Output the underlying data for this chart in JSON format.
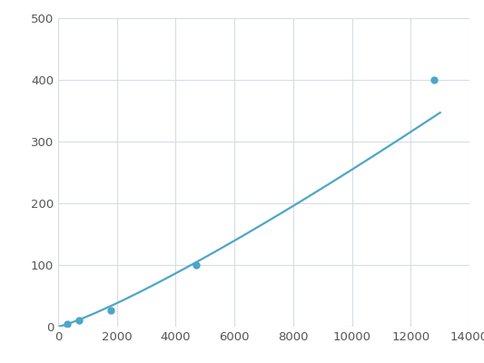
{
  "x": [
    300,
    700,
    1800,
    4700,
    12800
  ],
  "y": [
    5,
    10,
    27,
    100,
    400
  ],
  "line_color": "#4da6c8",
  "marker_color": "#4da6c8",
  "marker_size": 5,
  "line_width": 1.6,
  "xlim": [
    0,
    14000
  ],
  "ylim": [
    0,
    500
  ],
  "xticks": [
    0,
    2000,
    4000,
    6000,
    8000,
    10000,
    12000,
    14000
  ],
  "yticks": [
    0,
    100,
    200,
    300,
    400,
    500
  ],
  "grid_color": "#d5dde3",
  "background_color": "#ffffff",
  "tick_fontsize": 9.5
}
